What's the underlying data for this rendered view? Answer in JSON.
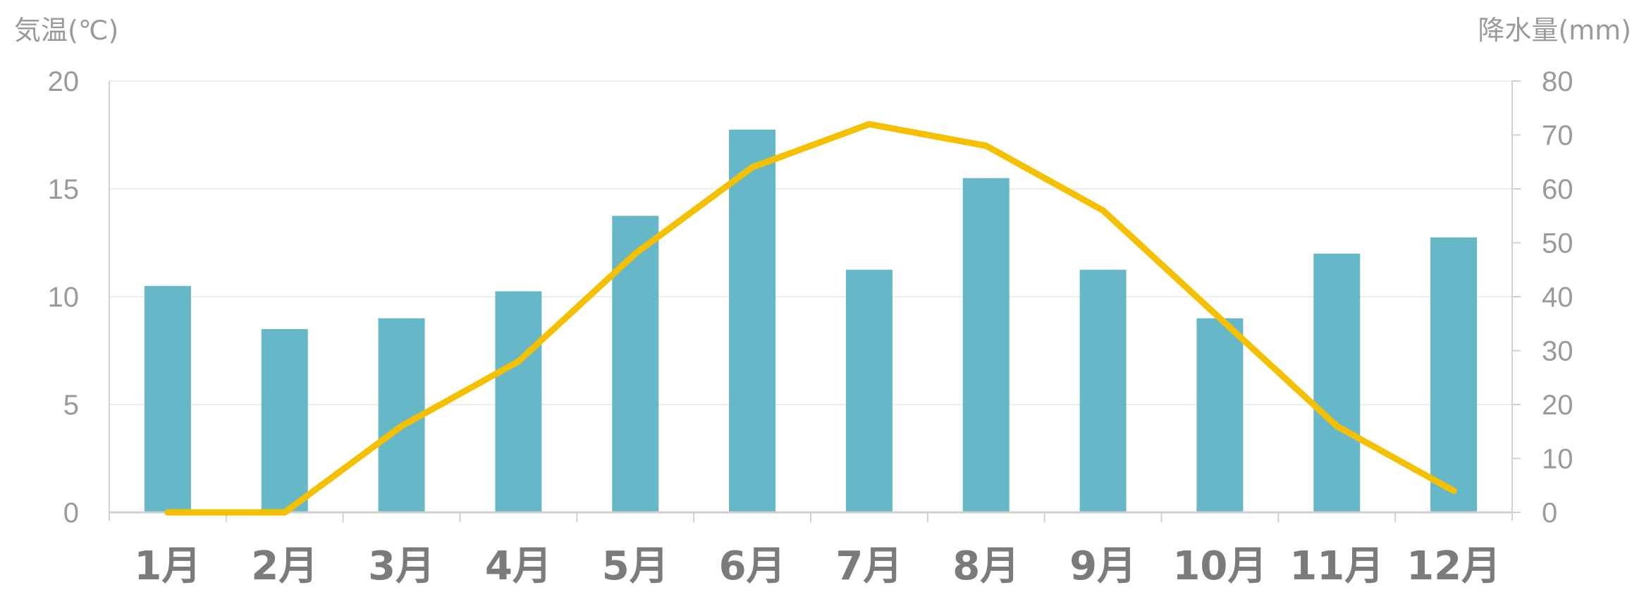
{
  "chart_data": {
    "type": "bar+line",
    "categories": [
      "1月",
      "2月",
      "3月",
      "4月",
      "5月",
      "6月",
      "7月",
      "8月",
      "9月",
      "10月",
      "11月",
      "12月"
    ],
    "left_axis": {
      "label": "気温(℃)",
      "ylim": [
        0,
        20
      ],
      "ticks": [
        "0",
        "5",
        "10",
        "15",
        "20"
      ]
    },
    "right_axis": {
      "label": "降水量(mm)",
      "ylim": [
        0,
        80
      ],
      "ticks": [
        "0",
        "10",
        "20",
        "30",
        "40",
        "50",
        "60",
        "70",
        "80"
      ]
    },
    "series": [
      {
        "type": "bar",
        "axis": "right",
        "values": [
          42,
          34,
          36,
          41,
          55,
          71,
          45,
          62,
          45,
          36,
          48,
          51
        ]
      },
      {
        "type": "line",
        "axis": "left",
        "values": [
          0,
          0,
          4,
          7,
          12,
          16,
          18,
          17,
          14,
          9,
          4,
          1
        ]
      }
    ],
    "grid": true,
    "colors": {
      "bar": "#66b8c9",
      "line": "#f5c000",
      "grid": "#eeeeee",
      "axis": "#d0d0d0"
    }
  }
}
